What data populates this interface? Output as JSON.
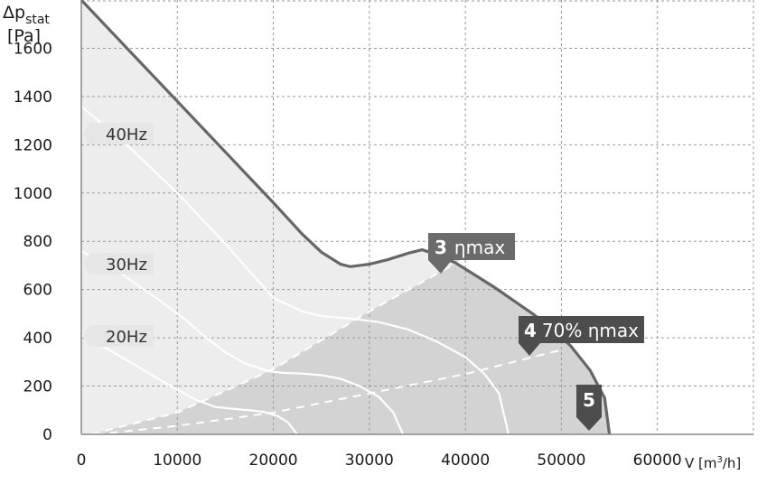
{
  "chart_data": {
    "type": "line",
    "y_label_symbol": "Δp",
    "y_label_sub": "stat",
    "y_label_unit": "[Pa]",
    "x_label_main": "V [m",
    "x_label_sup": "3",
    "x_label_end": "/h]",
    "xlim": [
      0,
      70000
    ],
    "ylim": [
      0,
      1800
    ],
    "x_ticks": [
      "0",
      "10000",
      "20000",
      "30000",
      "40000",
      "50000",
      "60000"
    ],
    "x_tick_values": [
      0,
      10000,
      20000,
      30000,
      40000,
      50000,
      60000
    ],
    "y_ticks": [
      "0",
      "200",
      "400",
      "600",
      "800",
      "1000",
      "1200",
      "1400",
      "1600"
    ],
    "y_tick_values": [
      0,
      200,
      400,
      600,
      800,
      1000,
      1200,
      1400,
      1600
    ],
    "grid": true,
    "max_curve": [
      [
        0,
        1800
      ],
      [
        5000,
        1590
      ],
      [
        10000,
        1380
      ],
      [
        15000,
        1170
      ],
      [
        20000,
        960
      ],
      [
        23000,
        830
      ],
      [
        25000,
        755
      ],
      [
        27000,
        705
      ],
      [
        28000,
        695
      ],
      [
        30000,
        705
      ],
      [
        32000,
        725
      ],
      [
        34000,
        750
      ],
      [
        35500,
        765
      ],
      [
        37000,
        745
      ],
      [
        39000,
        710
      ],
      [
        41000,
        660
      ],
      [
        43000,
        610
      ],
      [
        45000,
        555
      ],
      [
        47000,
        500
      ],
      [
        49000,
        440
      ],
      [
        51000,
        365
      ],
      [
        53000,
        265
      ],
      [
        54500,
        150
      ],
      [
        55000,
        0
      ]
    ],
    "frequency_curves": [
      {
        "label": "40Hz",
        "points": [
          [
            0,
            1360
          ],
          [
            5000,
            1190
          ],
          [
            10000,
            1000
          ],
          [
            15000,
            790
          ],
          [
            18000,
            655
          ],
          [
            20000,
            565
          ],
          [
            23000,
            510
          ],
          [
            25000,
            490
          ],
          [
            28000,
            480
          ],
          [
            31000,
            465
          ],
          [
            34000,
            435
          ],
          [
            37000,
            385
          ],
          [
            40000,
            320
          ],
          [
            42000,
            250
          ],
          [
            43500,
            170
          ],
          [
            44500,
            0
          ]
        ]
      },
      {
        "label": "30Hz",
        "points": [
          [
            0,
            760
          ],
          [
            4000,
            670
          ],
          [
            8000,
            560
          ],
          [
            11000,
            470
          ],
          [
            13000,
            400
          ],
          [
            15000,
            340
          ],
          [
            17000,
            295
          ],
          [
            19500,
            262
          ],
          [
            21000,
            255
          ],
          [
            23000,
            252
          ],
          [
            25000,
            245
          ],
          [
            27000,
            230
          ],
          [
            29000,
            200
          ],
          [
            31000,
            155
          ],
          [
            32500,
            90
          ],
          [
            33500,
            0
          ]
        ]
      },
      {
        "label": "20Hz",
        "points": [
          [
            0,
            410
          ],
          [
            2000,
            370
          ],
          [
            4000,
            325
          ],
          [
            6000,
            278
          ],
          [
            8000,
            230
          ],
          [
            10000,
            185
          ],
          [
            12000,
            142
          ],
          [
            14000,
            113
          ],
          [
            16000,
            105
          ],
          [
            17500,
            100
          ],
          [
            19000,
            93
          ],
          [
            20500,
            75
          ],
          [
            21500,
            50
          ],
          [
            22500,
            0
          ]
        ]
      }
    ],
    "operating_lines": [
      {
        "label": "3 ηmax",
        "points": [
          [
            1000,
            0
          ],
          [
            10000,
            90
          ],
          [
            20000,
            270
          ],
          [
            30000,
            510
          ],
          [
            40000,
            730
          ]
        ]
      },
      {
        "label": "4 70% ηmax",
        "points": [
          [
            1500,
            0
          ],
          [
            10000,
            35
          ],
          [
            20000,
            90
          ],
          [
            30000,
            170
          ],
          [
            40000,
            250
          ],
          [
            50000,
            350
          ]
        ]
      }
    ],
    "frequency_labels": [
      "40Hz",
      "30Hz",
      "20Hz"
    ],
    "tags": [
      {
        "num": "3",
        "text": "ηmax"
      },
      {
        "num": "4",
        "text": "70% ηmax"
      },
      {
        "num": "5",
        "text": ""
      }
    ]
  }
}
